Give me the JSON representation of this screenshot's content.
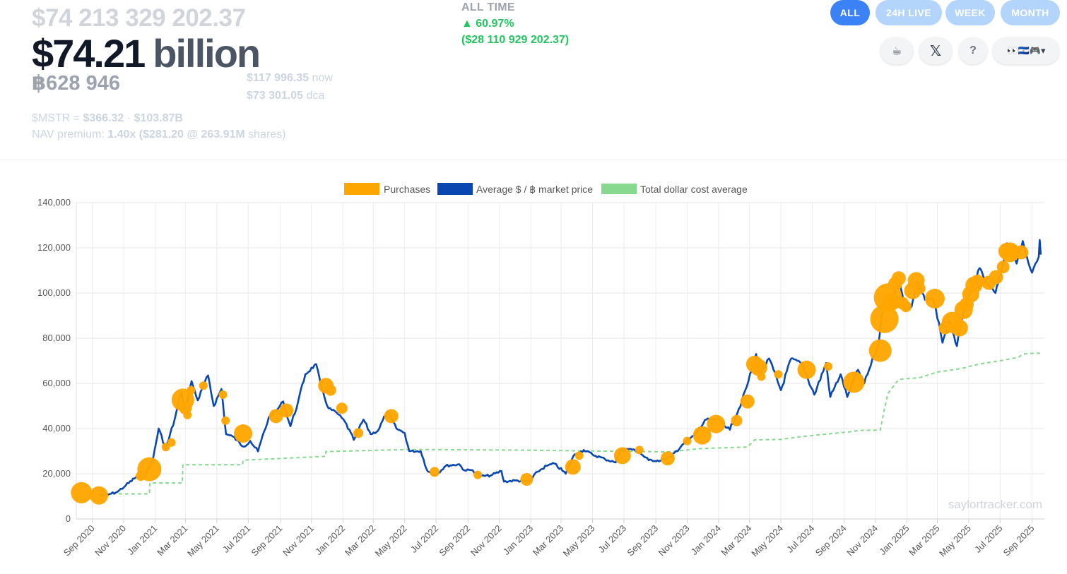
{
  "summary": {
    "total_usd": "$74 213 329 202.37",
    "headline_value": "$74.21",
    "headline_unit": "billion",
    "btc_holdings": "฿628 946",
    "price_now_value": "$117 996.35",
    "price_now_label": "now",
    "price_dca_value": "$73 301.05",
    "price_dca_label": "dca",
    "mstr_prefix": "$MSTR = ",
    "mstr_price": "$366.32",
    "mstr_sep": " · ",
    "mstr_cap": "$103.87B",
    "nav_prefix": "NAV premium: ",
    "nav_multiple": "1.40x",
    "nav_detail": "($281.20 @ 263.91M",
    "nav_suffix": " shares)"
  },
  "performance": {
    "label": "ALL TIME",
    "pct": "▲ 60.97%",
    "usd": "($28 110 929 202.37)",
    "positive_color": "#22c55e"
  },
  "period_buttons": [
    {
      "label": "ALL",
      "active": true
    },
    {
      "label": "24H LIVE",
      "active": false
    },
    {
      "label": "WEEK",
      "active": false
    },
    {
      "label": "MONTH",
      "active": false
    }
  ],
  "icon_buttons": {
    "coffee": "☕",
    "x": "𝕏",
    "help": "?",
    "flags": "👀🇸🇻🎮▾"
  },
  "watermark": "saylortracker.com",
  "colors": {
    "purchases": "#ffa500",
    "market_price": "#0a47b0",
    "dca": "#86d98e",
    "accent": "#3b82f6"
  },
  "chart_data": {
    "type": "line",
    "legend": [
      "Purchases",
      "Average $ / ฿ market price",
      "Total dollar cost average"
    ],
    "legend_position": "top",
    "ylim": [
      0,
      140000
    ],
    "y_ticks": [
      0,
      20000,
      40000,
      60000,
      80000,
      100000,
      120000,
      140000
    ],
    "y_tick_labels": [
      "0",
      "20,000",
      "40,000",
      "60,000",
      "80,000",
      "100,000",
      "120,000",
      "140,000"
    ],
    "x_range": [
      "2020-08-01",
      "2025-09-25"
    ],
    "x_ticks": [
      "2020-09-01",
      "2020-11-01",
      "2021-01-01",
      "2021-03-01",
      "2021-05-01",
      "2021-07-01",
      "2021-09-01",
      "2021-11-01",
      "2022-01-01",
      "2022-03-01",
      "2022-05-01",
      "2022-07-01",
      "2022-09-01",
      "2022-11-01",
      "2023-01-01",
      "2023-03-01",
      "2023-05-01",
      "2023-07-01",
      "2023-09-01",
      "2023-11-01",
      "2024-01-01",
      "2024-03-01",
      "2024-05-01",
      "2024-07-01",
      "2024-09-01",
      "2024-11-01",
      "2025-01-01",
      "2025-03-01",
      "2025-05-01",
      "2025-07-01",
      "2025-09-01"
    ],
    "x_tick_labels": [
      "Sep 2020",
      "Nov 2020",
      "Jan 2021",
      "Mar 2021",
      "May 2021",
      "Jul 2021",
      "Sep 2021",
      "Nov 2021",
      "Jan 2022",
      "Mar 2022",
      "May 2022",
      "Jul 2022",
      "Sep 2022",
      "Nov 2022",
      "Jan 2023",
      "Mar 2023",
      "May 2023",
      "Jul 2023",
      "Sep 2023",
      "Nov 2023",
      "Jan 2024",
      "Mar 2024",
      "May 2024",
      "Jul 2024",
      "Sep 2024",
      "Nov 2024",
      "Jan 2025",
      "Mar 2025",
      "May 2025",
      "Jul 2025",
      "Sep 2025"
    ],
    "grid": true,
    "series": [
      {
        "name": "Average $ / ฿ market price",
        "points": [
          [
            "2020-09-15",
            10300
          ],
          [
            "2020-10-01",
            10700
          ],
          [
            "2020-10-20",
            12000
          ],
          [
            "2020-11-05",
            14800
          ],
          [
            "2020-11-25",
            18500
          ],
          [
            "2020-12-10",
            18400
          ],
          [
            "2020-12-28",
            26500
          ],
          [
            "2021-01-08",
            40000
          ],
          [
            "2021-01-22",
            31000
          ],
          [
            "2021-02-08",
            44000
          ],
          [
            "2021-02-21",
            56000
          ],
          [
            "2021-03-01",
            48000
          ],
          [
            "2021-03-13",
            61000
          ],
          [
            "2021-03-25",
            52500
          ],
          [
            "2021-04-14",
            63500
          ],
          [
            "2021-04-25",
            50000
          ],
          [
            "2021-05-10",
            57500
          ],
          [
            "2021-05-19",
            37500
          ],
          [
            "2021-06-01",
            36500
          ],
          [
            "2021-06-22",
            32000
          ],
          [
            "2021-07-05",
            34500
          ],
          [
            "2021-07-20",
            29900
          ],
          [
            "2021-08-10",
            45000
          ],
          [
            "2021-08-25",
            48000
          ],
          [
            "2021-09-07",
            52000
          ],
          [
            "2021-09-21",
            41000
          ],
          [
            "2021-10-05",
            51000
          ],
          [
            "2021-10-20",
            64000
          ],
          [
            "2021-11-10",
            68500
          ],
          [
            "2021-11-20",
            58000
          ],
          [
            "2021-12-04",
            49000
          ],
          [
            "2021-12-20",
            47000
          ],
          [
            "2022-01-05",
            43000
          ],
          [
            "2022-01-22",
            35000
          ],
          [
            "2022-02-10",
            44000
          ],
          [
            "2022-02-24",
            37500
          ],
          [
            "2022-03-10",
            39000
          ],
          [
            "2022-03-28",
            47500
          ],
          [
            "2022-04-15",
            40000
          ],
          [
            "2022-05-01",
            38000
          ],
          [
            "2022-05-10",
            30000
          ],
          [
            "2022-06-01",
            30000
          ],
          [
            "2022-06-15",
            21000
          ],
          [
            "2022-06-30",
            19500
          ],
          [
            "2022-07-20",
            23500
          ],
          [
            "2022-08-15",
            24200
          ],
          [
            "2022-08-25",
            21500
          ],
          [
            "2022-09-10",
            21600
          ],
          [
            "2022-09-25",
            18900
          ],
          [
            "2022-10-15",
            19200
          ],
          [
            "2022-11-05",
            21200
          ],
          [
            "2022-11-10",
            16500
          ],
          [
            "2022-12-01",
            17000
          ],
          [
            "2022-12-30",
            16500
          ],
          [
            "2023-01-14",
            20900
          ],
          [
            "2023-02-01",
            23500
          ],
          [
            "2023-02-16",
            24500
          ],
          [
            "2023-03-10",
            20000
          ],
          [
            "2023-03-25",
            28000
          ],
          [
            "2023-04-14",
            30500
          ],
          [
            "2023-05-01",
            28500
          ],
          [
            "2023-05-25",
            26500
          ],
          [
            "2023-06-15",
            25000
          ],
          [
            "2023-06-25",
            30500
          ],
          [
            "2023-07-14",
            31000
          ],
          [
            "2023-08-01",
            29200
          ],
          [
            "2023-08-18",
            26000
          ],
          [
            "2023-09-10",
            25800
          ],
          [
            "2023-10-01",
            27500
          ],
          [
            "2023-10-23",
            33000
          ],
          [
            "2023-11-15",
            37000
          ],
          [
            "2023-12-08",
            44000
          ],
          [
            "2024-01-01",
            44000
          ],
          [
            "2024-01-23",
            39500
          ],
          [
            "2024-02-15",
            52000
          ],
          [
            "2024-02-28",
            61000
          ],
          [
            "2024-03-14",
            73000
          ],
          [
            "2024-03-20",
            63000
          ],
          [
            "2024-04-08",
            71000
          ],
          [
            "2024-05-01",
            57000
          ],
          [
            "2024-05-21",
            71000
          ],
          [
            "2024-06-10",
            69000
          ],
          [
            "2024-07-05",
            55000
          ],
          [
            "2024-07-28",
            69000
          ],
          [
            "2024-08-05",
            54000
          ],
          [
            "2024-08-25",
            64000
          ],
          [
            "2024-09-07",
            54000
          ],
          [
            "2024-09-28",
            66000
          ],
          [
            "2024-10-10",
            60000
          ],
          [
            "2024-10-29",
            72000
          ],
          [
            "2024-11-06",
            76000
          ],
          [
            "2024-11-13",
            90000
          ],
          [
            "2024-11-22",
            99000
          ],
          [
            "2024-12-05",
            98000
          ],
          [
            "2024-12-17",
            106000
          ],
          [
            "2024-12-30",
            92500
          ],
          [
            "2025-01-10",
            94000
          ],
          [
            "2025-01-22",
            105000
          ],
          [
            "2025-02-05",
            97000
          ],
          [
            "2025-02-20",
            97500
          ],
          [
            "2025-03-04",
            87000
          ],
          [
            "2025-03-11",
            78000
          ],
          [
            "2025-03-25",
            87500
          ],
          [
            "2025-04-08",
            76500
          ],
          [
            "2025-04-22",
            93000
          ],
          [
            "2025-05-10",
            103000
          ],
          [
            "2025-05-22",
            111000
          ],
          [
            "2025-06-05",
            104000
          ],
          [
            "2025-06-22",
            100000
          ],
          [
            "2025-07-03",
            109000
          ],
          [
            "2025-07-14",
            122000
          ],
          [
            "2025-07-22",
            118000
          ],
          [
            "2025-08-02",
            113000
          ],
          [
            "2025-08-14",
            123000
          ],
          [
            "2025-08-22",
            116000
          ],
          [
            "2025-09-01",
            109000
          ],
          [
            "2025-09-14",
            116000
          ],
          [
            "2025-09-16",
            123500
          ],
          [
            "2025-09-18",
            117000
          ]
        ]
      },
      {
        "name": "Total dollar cost average",
        "points": [
          [
            "2020-09-15",
            11100
          ],
          [
            "2020-12-21",
            11100
          ],
          [
            "2020-12-22",
            15900
          ],
          [
            "2021-02-23",
            15900
          ],
          [
            "2021-02-24",
            24000
          ],
          [
            "2021-06-20",
            24000
          ],
          [
            "2021-06-21",
            26000
          ],
          [
            "2021-11-28",
            27700
          ],
          [
            "2021-11-29",
            29800
          ],
          [
            "2022-05-01",
            30700
          ],
          [
            "2022-06-30",
            30700
          ],
          [
            "2022-12-31",
            30400
          ],
          [
            "2023-09-24",
            29700
          ],
          [
            "2023-11-30",
            31200
          ],
          [
            "2024-02-26",
            31800
          ],
          [
            "2024-03-11",
            35000
          ],
          [
            "2024-05-01",
            35200
          ],
          [
            "2024-06-20",
            36700
          ],
          [
            "2024-09-13",
            38600
          ],
          [
            "2024-10-01",
            39200
          ],
          [
            "2024-11-10",
            39300
          ],
          [
            "2024-11-18",
            48500
          ],
          [
            "2024-11-25",
            55500
          ],
          [
            "2024-12-16",
            61800
          ],
          [
            "2025-01-25",
            62500
          ],
          [
            "2025-03-01",
            65000
          ],
          [
            "2025-04-15",
            66500
          ],
          [
            "2025-05-20",
            68500
          ],
          [
            "2025-07-01",
            70000
          ],
          [
            "2025-08-05",
            71500
          ],
          [
            "2025-08-15",
            73000
          ],
          [
            "2025-09-05",
            73300
          ],
          [
            "2025-09-18",
            73300
          ]
        ]
      },
      {
        "name": "Purchases",
        "points": [
          [
            "2020-08-11",
            11600,
            15
          ],
          [
            "2020-09-14",
            10400,
            13
          ],
          [
            "2020-12-04",
            19000,
            7
          ],
          [
            "2020-12-21",
            22000,
            17
          ],
          [
            "2021-01-22",
            31800,
            6
          ],
          [
            "2021-02-02",
            33800,
            6
          ],
          [
            "2021-02-24",
            52700,
            16
          ],
          [
            "2021-03-01",
            49000,
            9
          ],
          [
            "2021-03-05",
            46000,
            6
          ],
          [
            "2021-03-12",
            57000,
            6
          ],
          [
            "2021-04-05",
            59000,
            6
          ],
          [
            "2021-05-13",
            55000,
            6
          ],
          [
            "2021-05-18",
            43500,
            6
          ],
          [
            "2021-06-21",
            37800,
            13
          ],
          [
            "2021-08-24",
            45500,
            10
          ],
          [
            "2021-09-13",
            48000,
            10
          ],
          [
            "2021-11-29",
            59000,
            11
          ],
          [
            "2021-12-08",
            57000,
            8
          ],
          [
            "2021-12-30",
            49000,
            8
          ],
          [
            "2022-01-31",
            38000,
            7
          ],
          [
            "2022-04-05",
            45500,
            10
          ],
          [
            "2022-06-28",
            20800,
            7
          ],
          [
            "2022-09-20",
            19500,
            6
          ],
          [
            "2022-12-24",
            17500,
            9
          ],
          [
            "2023-03-24",
            23000,
            11
          ],
          [
            "2023-04-05",
            28000,
            6
          ],
          [
            "2023-06-28",
            28000,
            12
          ],
          [
            "2023-07-31",
            30500,
            6
          ],
          [
            "2023-09-24",
            26800,
            10
          ],
          [
            "2023-11-01",
            34500,
            6
          ],
          [
            "2023-11-30",
            37000,
            13
          ],
          [
            "2023-12-27",
            42000,
            13
          ],
          [
            "2024-02-05",
            43500,
            8
          ],
          [
            "2024-02-26",
            52000,
            10
          ],
          [
            "2024-03-11",
            68500,
            12
          ],
          [
            "2024-03-19",
            67000,
            12
          ],
          [
            "2024-03-24",
            63000,
            6
          ],
          [
            "2024-04-26",
            64000,
            6
          ],
          [
            "2024-06-20",
            66000,
            13
          ],
          [
            "2024-08-01",
            67500,
            6
          ],
          [
            "2024-09-20",
            60500,
            15
          ],
          [
            "2024-11-10",
            74500,
            16
          ],
          [
            "2024-11-18",
            88500,
            20
          ],
          [
            "2024-11-25",
            98000,
            20
          ],
          [
            "2024-12-02",
            96000,
            12
          ],
          [
            "2024-12-09",
            104000,
            10
          ],
          [
            "2024-12-16",
            106500,
            10
          ],
          [
            "2024-12-23",
            95500,
            9
          ],
          [
            "2024-12-30",
            94000,
            8
          ],
          [
            "2025-01-12",
            101000,
            12
          ],
          [
            "2025-01-19",
            105500,
            12
          ],
          [
            "2025-01-26",
            102000,
            8
          ],
          [
            "2025-02-24",
            97500,
            14
          ],
          [
            "2025-03-16",
            84500,
            9
          ],
          [
            "2025-03-30",
            87000,
            15
          ],
          [
            "2025-04-13",
            84500,
            12
          ],
          [
            "2025-04-21",
            92500,
            13
          ],
          [
            "2025-04-27",
            95000,
            10
          ],
          [
            "2025-05-05",
            99500,
            12
          ],
          [
            "2025-05-11",
            103500,
            12
          ],
          [
            "2025-05-18",
            105000,
            10
          ],
          [
            "2025-06-09",
            104500,
            10
          ],
          [
            "2025-06-23",
            107000,
            10
          ],
          [
            "2025-07-07",
            111500,
            9
          ],
          [
            "2025-07-14",
            118500,
            12
          ],
          [
            "2025-07-20",
            118000,
            14
          ],
          [
            "2025-07-28",
            118000,
            10
          ],
          [
            "2025-08-11",
            118000,
            10
          ]
        ]
      }
    ]
  }
}
